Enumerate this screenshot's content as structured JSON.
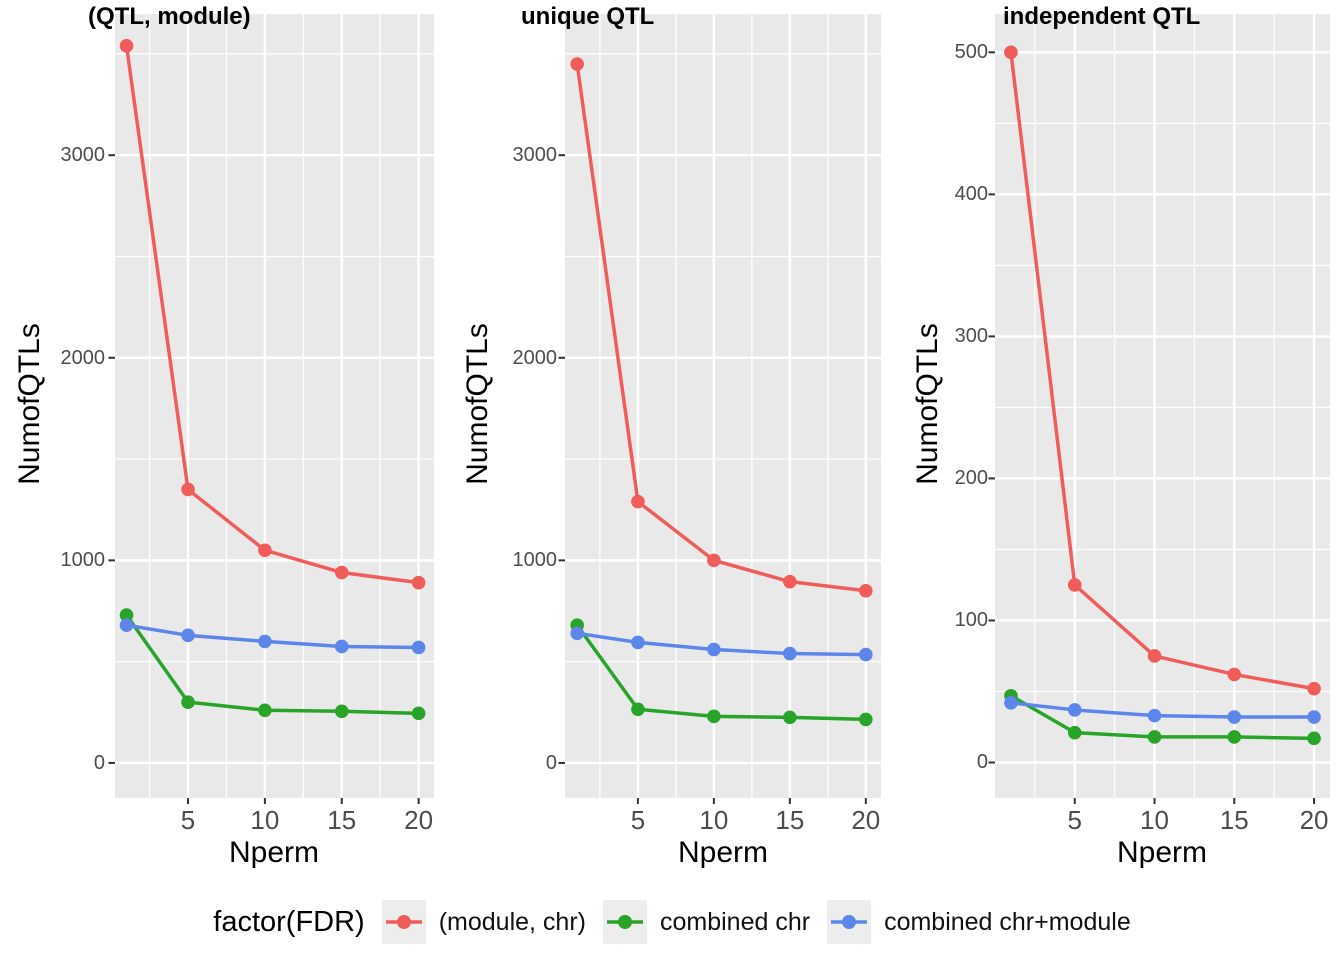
{
  "legend": {
    "title": "factor(FDR)",
    "position": "bottom",
    "items": [
      {
        "label": "(module, chr)",
        "color": "#F05C5A"
      },
      {
        "label": "combined chr",
        "color": "#28A428"
      },
      {
        "label": "combined chr+module",
        "color": "#5C86EA"
      }
    ]
  },
  "style": {
    "panel_bg": "#E9E9E9",
    "grid_color": "#FFFFFF",
    "tick_text_color": "#4D4D4D",
    "tick_mark_color": "#333333",
    "key_bg": "#EDEDED"
  },
  "chart_data": [
    {
      "type": "line",
      "title": "(QTL, module)",
      "xlabel": "Nperm",
      "ylabel": "NumofQTLs",
      "x": [
        1,
        5,
        10,
        15,
        20
      ],
      "xticks": [
        5,
        10,
        15,
        20
      ],
      "yticks": [
        0,
        1000,
        2000,
        3000
      ],
      "xlim": [
        0.25,
        21
      ],
      "ylim": [
        -173,
        3697
      ],
      "grid": true,
      "series": [
        {
          "name": "(module, chr)",
          "color": "#F05C5A",
          "values": [
            3540,
            1350,
            1050,
            940,
            890
          ]
        },
        {
          "name": "combined chr",
          "color": "#28A428",
          "values": [
            730,
            300,
            260,
            255,
            245
          ]
        },
        {
          "name": "combined chr+module",
          "color": "#5C86EA",
          "values": [
            680,
            630,
            600,
            575,
            570
          ]
        }
      ]
    },
    {
      "type": "line",
      "title": "unique QTL",
      "xlabel": "Nperm",
      "ylabel": "NumofQTLs",
      "x": [
        1,
        5,
        10,
        15,
        20
      ],
      "xticks": [
        5,
        10,
        15,
        20
      ],
      "yticks": [
        0,
        1000,
        2000,
        3000
      ],
      "xlim": [
        0.2,
        21
      ],
      "ylim": [
        -173,
        3697
      ],
      "grid": true,
      "series": [
        {
          "name": "(module, chr)",
          "color": "#F05C5A",
          "values": [
            3450,
            1290,
            1000,
            895,
            850
          ]
        },
        {
          "name": "combined chr",
          "color": "#28A428",
          "values": [
            680,
            265,
            230,
            225,
            215
          ]
        },
        {
          "name": "combined chr+module",
          "color": "#5C86EA",
          "values": [
            640,
            595,
            560,
            540,
            535
          ]
        }
      ]
    },
    {
      "type": "line",
      "title": "independent QTL",
      "xlabel": "Nperm",
      "ylabel": "NumofQTLs",
      "x": [
        1,
        5,
        10,
        15,
        20
      ],
      "xticks": [
        5,
        10,
        15,
        20
      ],
      "yticks": [
        0,
        100,
        200,
        300,
        400,
        500
      ],
      "xlim": [
        0,
        21
      ],
      "ylim": [
        -25,
        527
      ],
      "grid": true,
      "series": [
        {
          "name": "(module, chr)",
          "color": "#F05C5A",
          "values": [
            500,
            125,
            75,
            62,
            52
          ]
        },
        {
          "name": "combined chr",
          "color": "#28A428",
          "values": [
            47,
            21,
            18,
            18,
            17
          ]
        },
        {
          "name": "combined chr+module",
          "color": "#5C86EA",
          "values": [
            42,
            37,
            33,
            32,
            32
          ]
        }
      ]
    }
  ]
}
